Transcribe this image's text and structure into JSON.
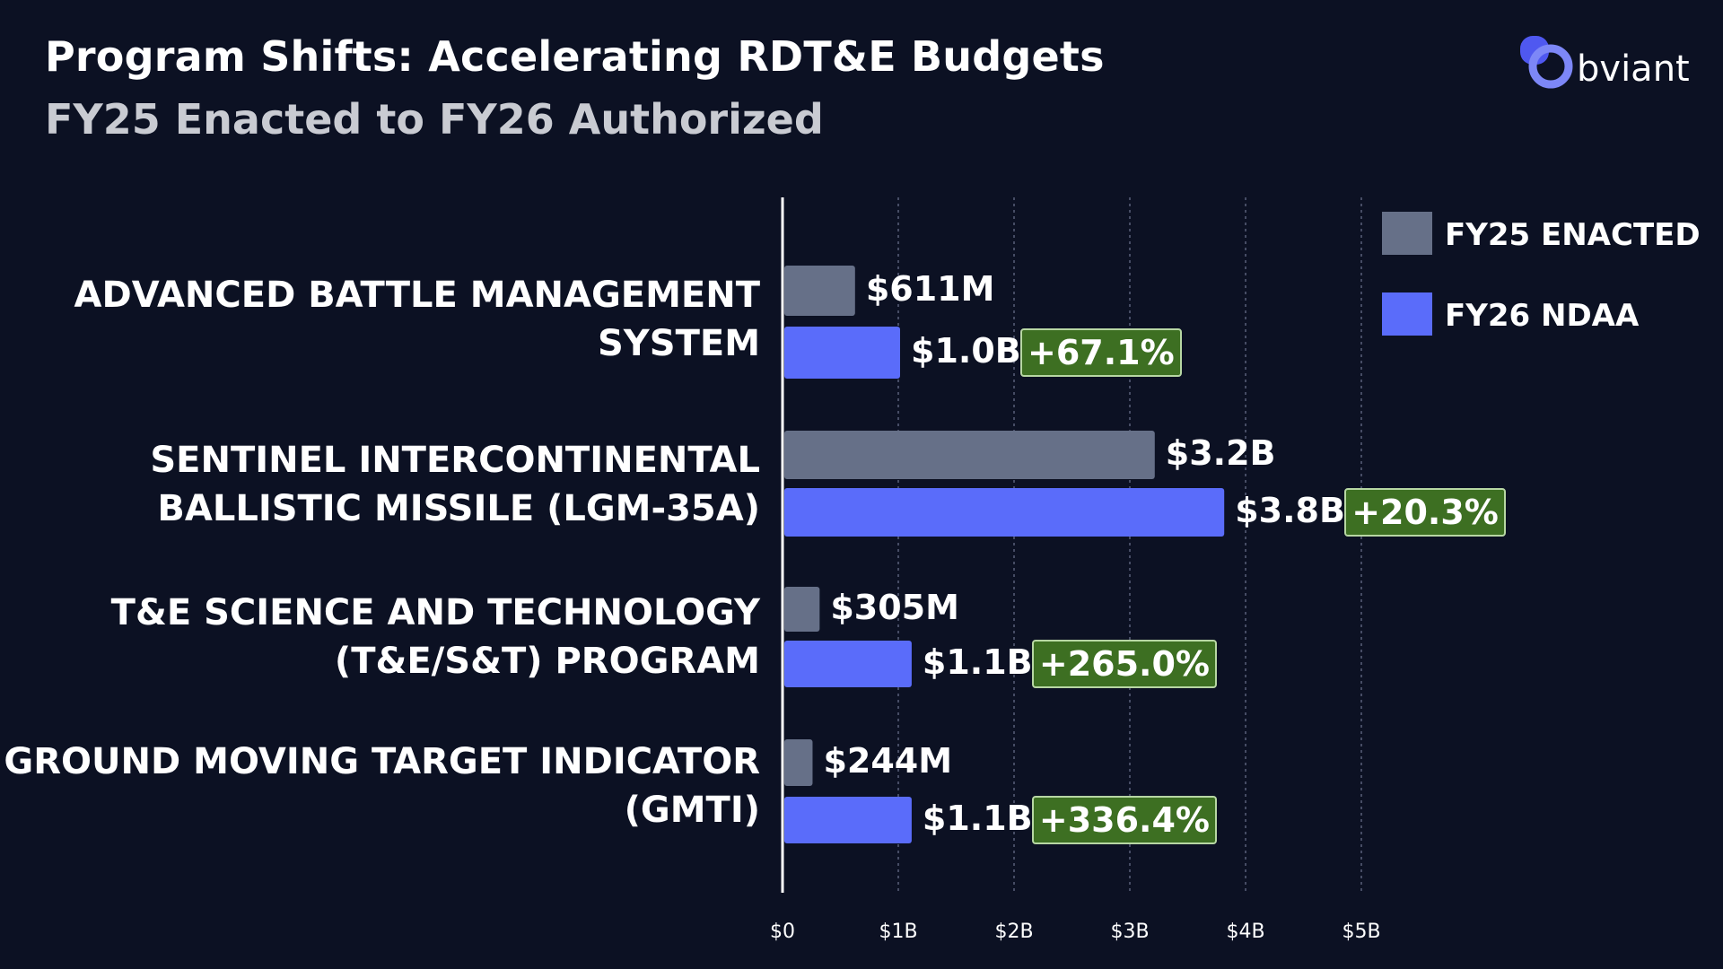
{
  "header": {
    "title": "Program Shifts: Accelerating RDT&E Budgets",
    "subtitle": "FY25 Enacted to FY26 Authorized"
  },
  "logo": {
    "text": "bviant",
    "icon": "obviant-logo-icon"
  },
  "colors": {
    "background": "#0c1123",
    "fy25": "#667088",
    "fy26": "#5a6cfa",
    "badge": "#3d6f22",
    "logo_accent": "#4f58f0"
  },
  "chart_data": {
    "type": "bar",
    "orientation": "horizontal",
    "grid": true,
    "xlim": [
      0,
      5
    ],
    "x_unit": "B",
    "ticks": [
      "$0",
      "$1B",
      "$2B",
      "$3B",
      "$4B",
      "$5B"
    ],
    "legend_position": "top-right",
    "categories": [
      "ADVANCED BATTLE MANAGEMENT\nSYSTEM",
      "SENTINEL INTERCONTINENTAL\nBALLISTIC MISSILE (LGM-35A)",
      "T&E SCIENCE AND TECHNOLOGY\n(T&E/S&T) PROGRAM",
      "GROUND MOVING TARGET INDICATOR\n(GMTI)"
    ],
    "series": [
      {
        "name": "FY25 ENACTED",
        "values": [
          0.611,
          3.2,
          0.305,
          0.244
        ],
        "labels": [
          "$611M",
          "$3.2B",
          "$305M",
          "$244M"
        ]
      },
      {
        "name": "FY26 NDAA",
        "values": [
          1.0,
          3.8,
          1.1,
          1.1
        ],
        "labels": [
          "$1.0B",
          "$3.8B",
          "$1.1B",
          "$1.1B"
        ]
      }
    ],
    "changes": [
      "+67.1%",
      "+20.3%",
      "+265.0%",
      "+336.4%"
    ]
  }
}
